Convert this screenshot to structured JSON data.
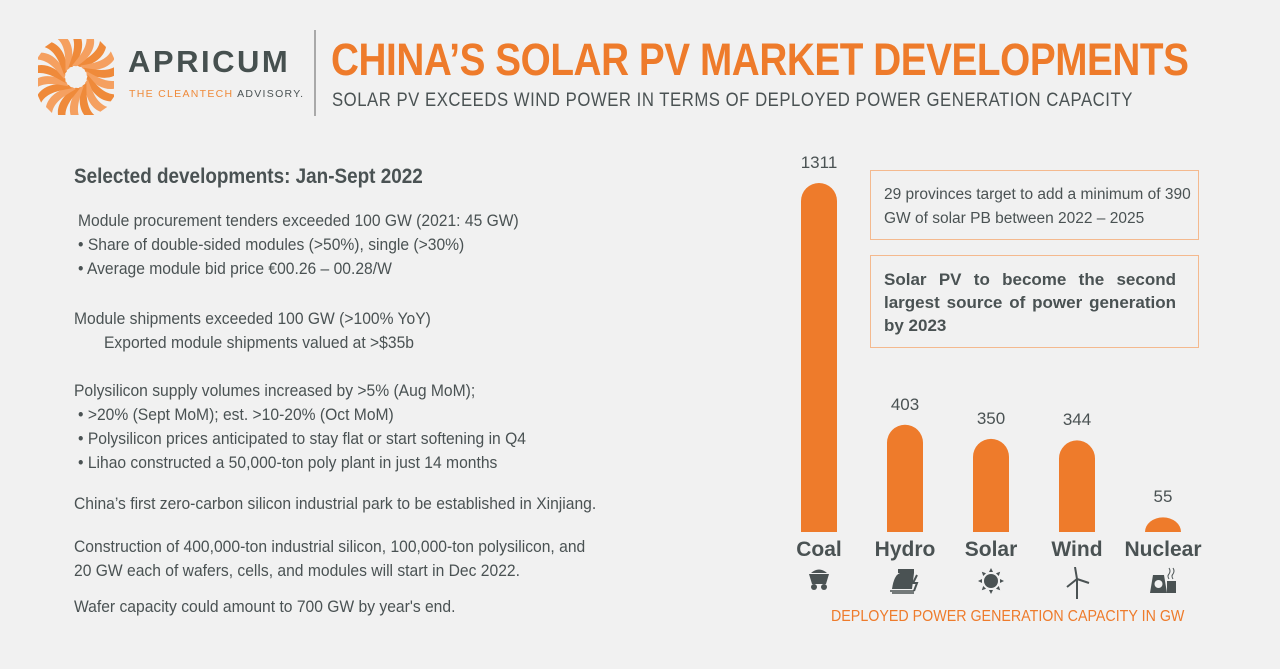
{
  "brand": {
    "name": "APRICUM",
    "tagline_orange": "THE CLEANTECH",
    "tagline_gray": "ADVISORY.",
    "accent": "#ee7b2b",
    "text_color": "#4a5253"
  },
  "header": {
    "title": "CHINA’S SOLAR PV MARKET DEVELOPMENTS",
    "subtitle": "SOLAR PV EXCEEDS WIND POWER IN TERMS OF DEPLOYED POWER GENERATION CAPACITY"
  },
  "developments": {
    "heading": "Selected developments: Jan-Sept 2022",
    "lines": [
      "Module procurement tenders exceeded 100 GW (2021: 45 GW)",
      "•  Share of double-sided modules (>50%), single (>30%)",
      "•  Average module bid price €00.26 – 00.28/W",
      "Module shipments exceeded 100 GW (>100% YoY)",
      "Exported module shipments valued at >$35b",
      "Polysilicon supply volumes increased by >5% (Aug MoM);",
      "•   >20% (Sept MoM); est. >10-20% (Oct MoM)",
      "•   Polysilicon prices anticipated to stay flat or start softening in Q4",
      "•   Lihao constructed a 50,000-ton poly plant in just 14 months",
      "China’s first zero-carbon silicon industrial park to be established in Xinjiang.",
      "Construction of 400,000-ton industrial silicon, 100,000-ton polysilicon, and",
      "20 GW each of wafers, cells, and modules will start in Dec 2022.",
      "Wafer capacity could amount to 700 GW by year's end."
    ]
  },
  "callouts": {
    "box1": "29 provinces target to add a minimum of 390 GW of solar PB between 2022 – 2025",
    "box2": "Solar PV to become the second largest source of power generation by 2023"
  },
  "chart_data": {
    "type": "bar",
    "categories": [
      "Coal",
      "Hydro",
      "Solar",
      "Wind",
      "Nuclear"
    ],
    "values": [
      1311,
      403,
      350,
      344,
      55
    ],
    "icons": [
      "coal-cart-icon",
      "hydro-dam-icon",
      "sun-icon",
      "wind-turbine-icon",
      "nuclear-plant-icon"
    ],
    "xlabel": "DEPLOYED POWER GENERATION CAPACITY IN GW",
    "ylabel": "",
    "ylim": [
      0,
      1311
    ],
    "grid": false,
    "bar_color": "#ee7b2b"
  }
}
